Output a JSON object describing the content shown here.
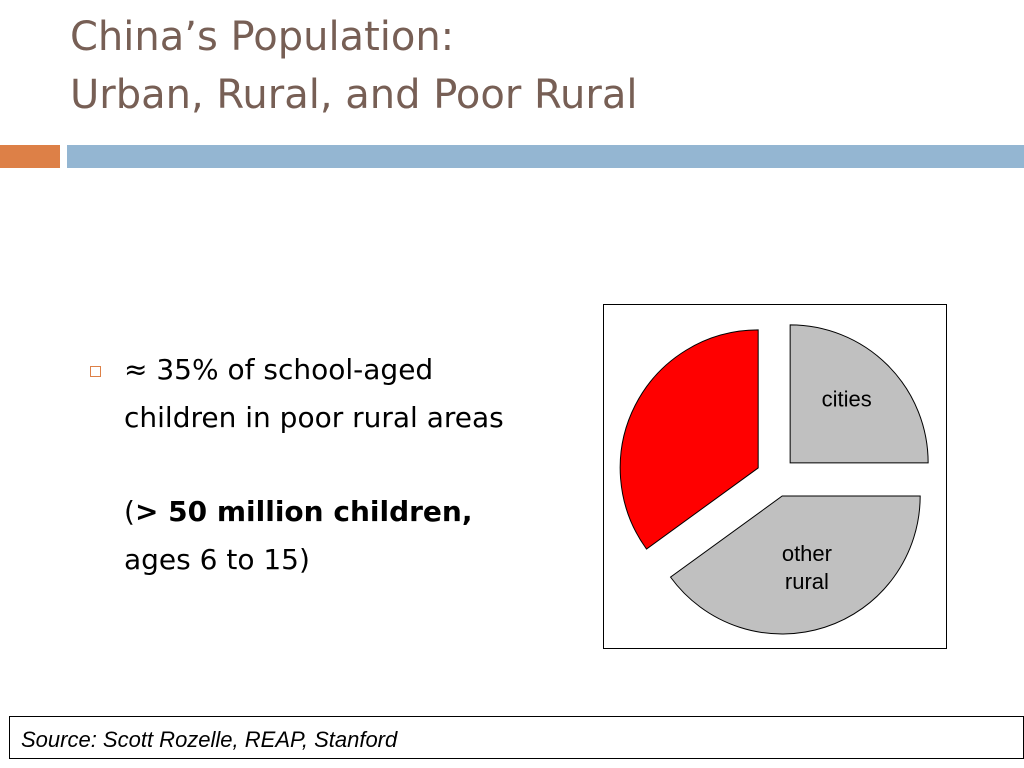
{
  "slide": {
    "title_line1": "China’s Population:",
    "title_line2": "Urban, Rural, and Poor Rural"
  },
  "bullet": {
    "text": "≈ 35% of school-aged children in poor rural areas",
    "note_open": "(",
    "note_bold": "> 50 million children,",
    "note_rest": "ages 6 to 15)"
  },
  "source": {
    "text": "Source: Scott Rozelle, REAP, Stanford"
  },
  "colors": {
    "title": "#775f55",
    "accent_orange": "#dd8047",
    "accent_blue": "#94b6d2",
    "highlight_slice": "#ff0000",
    "other_slice": "#c0c0c0"
  },
  "chart_data": {
    "type": "pie",
    "exploded": true,
    "slices": [
      {
        "label": "cities",
        "value": 25,
        "color": "#c0c0c0"
      },
      {
        "label": "other rural",
        "value": 40,
        "color": "#c0c0c0"
      },
      {
        "label": "",
        "value": 35,
        "color": "#ff0000"
      }
    ],
    "start_angle_deg": -90
  }
}
